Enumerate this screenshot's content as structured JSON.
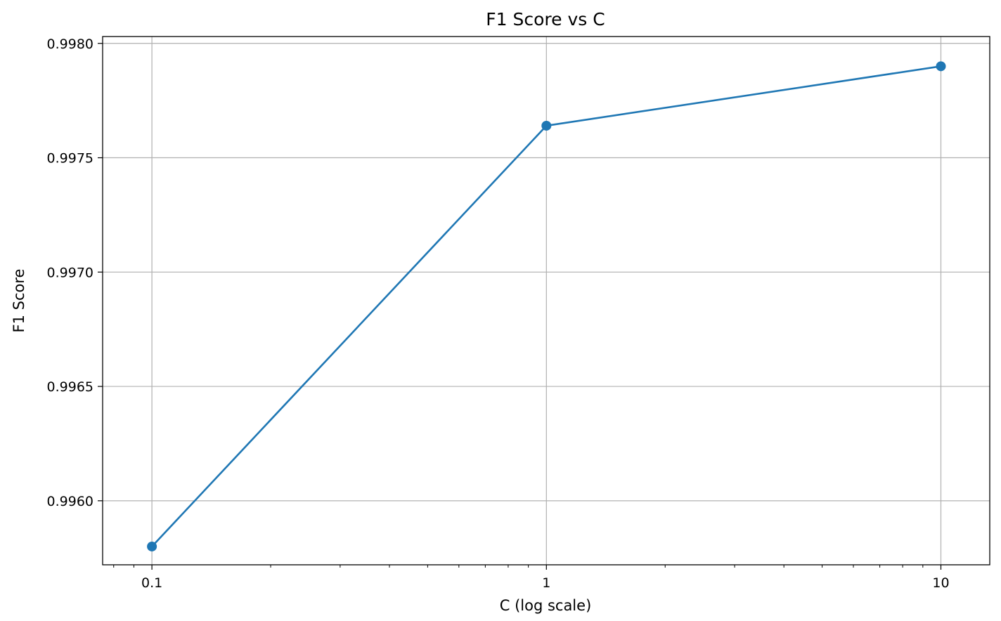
{
  "chart_data": {
    "type": "line",
    "title": "F1 Score vs C",
    "xlabel": "C (log scale)",
    "ylabel": "F1 Score",
    "x_scale": "log",
    "xlim": [
      0.075,
      13.3
    ],
    "ylim": [
      0.99572,
      0.99803
    ],
    "x_ticks": [
      0.1,
      1,
      10
    ],
    "x_tick_labels": [
      "0.1",
      "1",
      "10"
    ],
    "y_ticks": [
      0.996,
      0.9965,
      0.997,
      0.9975,
      0.998
    ],
    "y_tick_labels": [
      "0.9960",
      "0.9965",
      "0.9970",
      "0.9975",
      "0.9980"
    ],
    "grid": true,
    "series": [
      {
        "x": [
          0.1,
          1,
          10
        ],
        "y": [
          0.9958,
          0.99764,
          0.9979
        ],
        "color": "#1f77b4",
        "marker": "circle"
      }
    ]
  }
}
